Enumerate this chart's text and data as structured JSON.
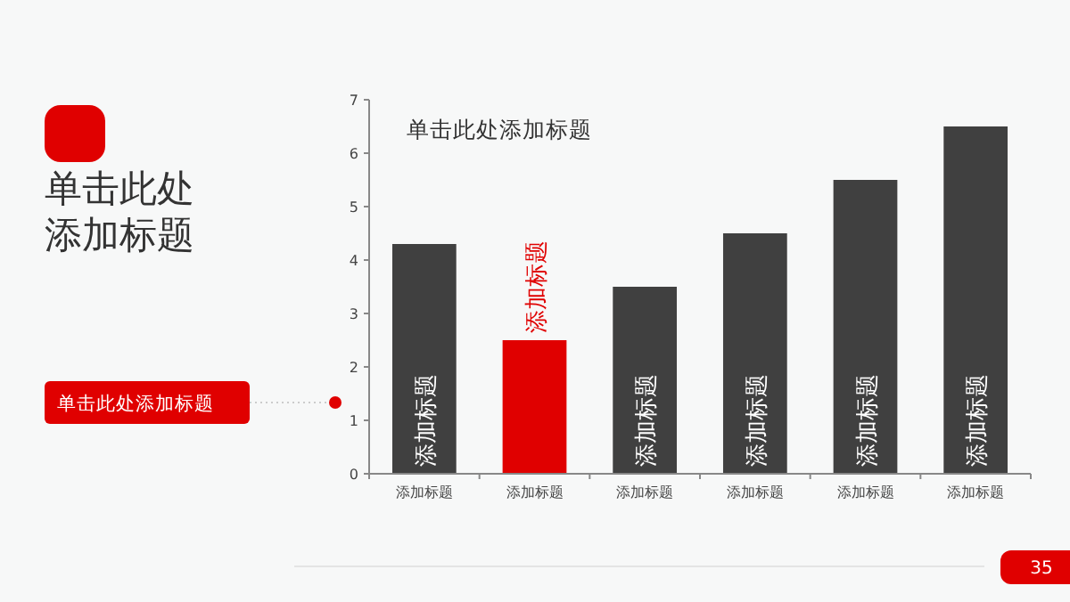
{
  "chart_data": {
    "type": "bar",
    "title": "单击此处添加标题",
    "categories": [
      "添加标题",
      "添加标题",
      "添加标题",
      "添加标题",
      "添加标题",
      "添加标题"
    ],
    "values": [
      4.3,
      2.5,
      3.5,
      4.5,
      5.5,
      6.5
    ],
    "colors": [
      "#404040",
      "#e00000",
      "#404040",
      "#404040",
      "#404040",
      "#404040"
    ],
    "value_labels": [
      "添加标题",
      "添加标题",
      "添加标题",
      "添加标题",
      "添加标题",
      "添加标题"
    ],
    "ylim": [
      0,
      7
    ],
    "yticks": [
      0,
      1,
      2,
      3,
      4,
      5,
      6,
      7
    ],
    "grid": false,
    "annotations": [
      "单击此处添加标题",
      "单击此处添加标题",
      "35"
    ]
  }
}
